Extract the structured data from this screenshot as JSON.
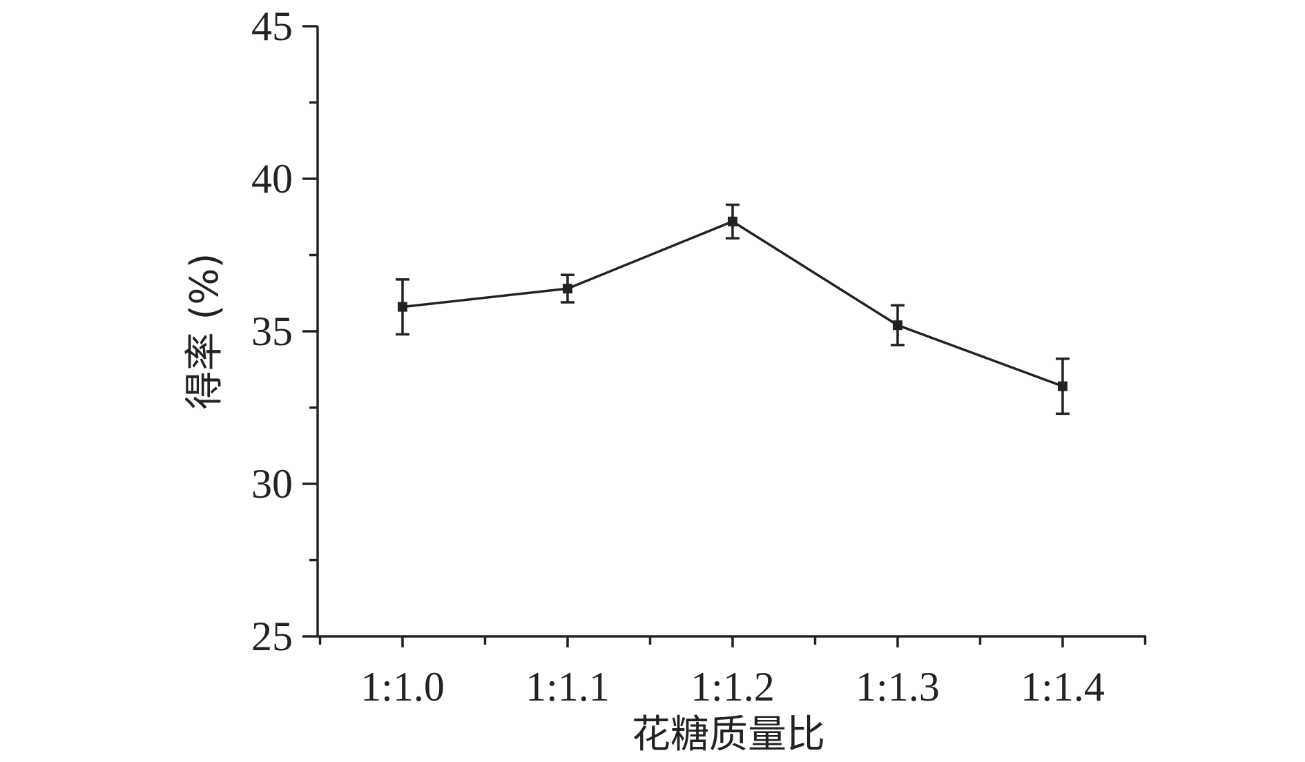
{
  "chart_data": {
    "type": "line",
    "title": "",
    "xlabel": "花糖质量比",
    "ylabel": "得率 (%)",
    "categories": [
      "1:1.0",
      "1:1.1",
      "1:1.2",
      "1:1.3",
      "1:1.4"
    ],
    "series": [
      {
        "values": [
          35.8,
          36.4,
          38.6,
          35.2,
          33.2
        ],
        "errors": [
          0.9,
          0.45,
          0.55,
          0.65,
          0.9
        ]
      }
    ],
    "ylim": [
      25,
      45
    ],
    "yticks": [
      25,
      30,
      35,
      40,
      45
    ],
    "ytick_labels": [
      "25",
      "30",
      "35",
      "40",
      "45"
    ],
    "grid": false,
    "legend": "none",
    "line_color": "#222222",
    "marker": "square"
  }
}
